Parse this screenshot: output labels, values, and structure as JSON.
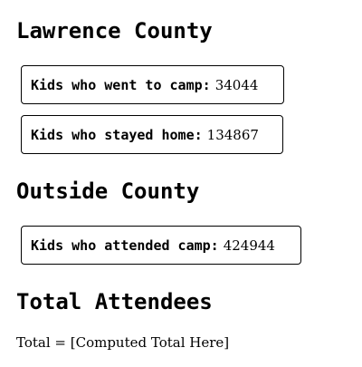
{
  "sections": {
    "lawrence": {
      "heading": "Lawrence County",
      "went_to_camp": {
        "label": "Kids who went to camp:",
        "value": "34044"
      },
      "stayed_home": {
        "label": "Kids who stayed home:",
        "value": "134867"
      }
    },
    "outside": {
      "heading": "Outside County",
      "attended_camp": {
        "label": "Kids who attended camp:",
        "value": "424944"
      }
    },
    "total": {
      "heading": "Total Attendees",
      "text": "Total = [Computed Total Here]"
    }
  }
}
